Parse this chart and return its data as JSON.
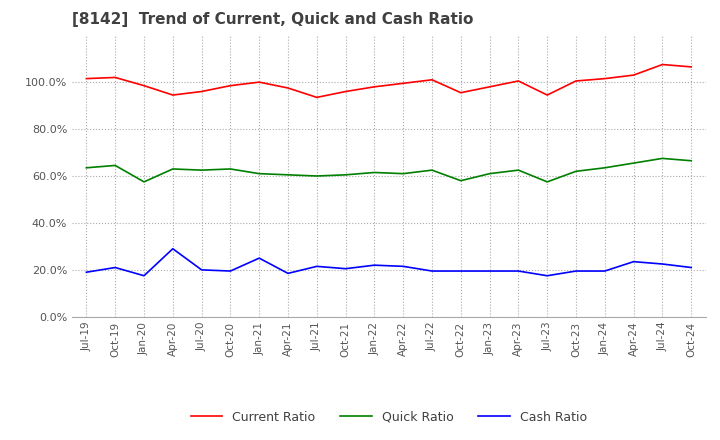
{
  "title": "[8142]  Trend of Current, Quick and Cash Ratio",
  "x_labels": [
    "Jul-19",
    "Oct-19",
    "Jan-20",
    "Apr-20",
    "Jul-20",
    "Oct-20",
    "Jan-21",
    "Apr-21",
    "Jul-21",
    "Oct-21",
    "Jan-22",
    "Apr-22",
    "Jul-22",
    "Oct-22",
    "Jan-23",
    "Apr-23",
    "Jul-23",
    "Oct-23",
    "Jan-24",
    "Apr-24",
    "Jul-24",
    "Oct-24"
  ],
  "current_ratio": [
    101.5,
    102.0,
    98.5,
    94.5,
    96.0,
    98.5,
    100.0,
    97.5,
    93.5,
    96.0,
    98.0,
    99.5,
    101.0,
    95.5,
    98.0,
    100.5,
    94.5,
    100.5,
    101.5,
    103.0,
    107.5,
    106.5
  ],
  "quick_ratio": [
    63.5,
    64.5,
    57.5,
    63.0,
    62.5,
    63.0,
    61.0,
    60.5,
    60.0,
    60.5,
    61.5,
    61.0,
    62.5,
    58.0,
    61.0,
    62.5,
    57.5,
    62.0,
    63.5,
    65.5,
    67.5,
    66.5
  ],
  "cash_ratio": [
    19.0,
    21.0,
    17.5,
    29.0,
    20.0,
    19.5,
    25.0,
    18.5,
    21.5,
    20.5,
    22.0,
    21.5,
    19.5,
    19.5,
    19.5,
    19.5,
    17.5,
    19.5,
    19.5,
    23.5,
    22.5,
    21.0
  ],
  "current_color": "#FF0000",
  "quick_color": "#008000",
  "cash_color": "#0000FF",
  "ylim": [
    0,
    120
  ],
  "yticks": [
    0,
    20,
    40,
    60,
    80,
    100
  ],
  "background_color": "#FFFFFF",
  "grid_color": "#AAAAAA"
}
